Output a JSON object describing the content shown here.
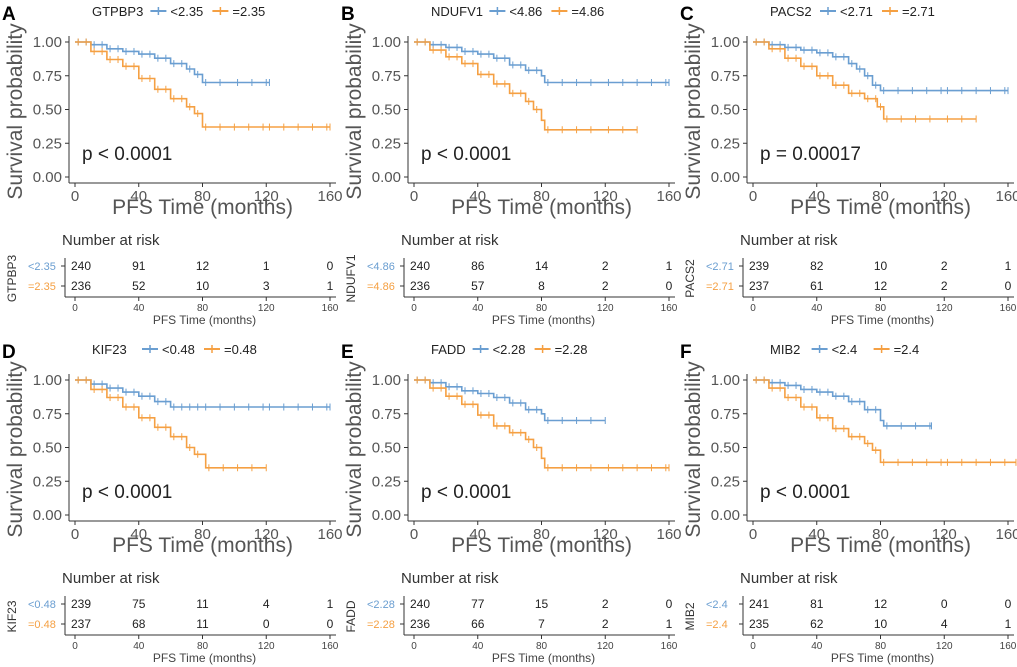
{
  "colors": {
    "low": "#6a9ed1",
    "high": "#f5a043"
  },
  "chart_data": [
    {
      "type": "line",
      "subtype": "kaplan-meier",
      "panel": "A",
      "gene": "GTPBP3",
      "legend": [
        "<2.35",
        "=2.35"
      ],
      "xlabel": "PFS Time (months)",
      "ylabel": "Survival probability",
      "xlim": [
        0,
        160
      ],
      "ylim": [
        0,
        1
      ],
      "xticks": [
        "0",
        "40",
        "80",
        "120",
        "160"
      ],
      "yticks": [
        "0.00",
        "0.25",
        "0.50",
        "0.75",
        "1.00"
      ],
      "pvalue": "p < 0.0001",
      "series": [
        {
          "name": "<2.35",
          "points": [
            [
              0,
              1
            ],
            [
              10,
              0.98
            ],
            [
              20,
              0.95
            ],
            [
              30,
              0.93
            ],
            [
              40,
              0.91
            ],
            [
              50,
              0.88
            ],
            [
              60,
              0.84
            ],
            [
              70,
              0.8
            ],
            [
              75,
              0.76
            ],
            [
              80,
              0.7
            ],
            [
              100,
              0.7
            ],
            [
              122,
              0.7
            ]
          ]
        },
        {
          "name": "=2.35",
          "points": [
            [
              0,
              1
            ],
            [
              10,
              0.93
            ],
            [
              20,
              0.87
            ],
            [
              30,
              0.82
            ],
            [
              40,
              0.73
            ],
            [
              50,
              0.65
            ],
            [
              60,
              0.58
            ],
            [
              70,
              0.52
            ],
            [
              75,
              0.47
            ],
            [
              80,
              0.37
            ],
            [
              120,
              0.37
            ],
            [
              160,
              0.37
            ]
          ]
        }
      ],
      "risk_table": {
        "title": "Number at risk",
        "xlabel": "PFS Time (months)",
        "xticks": [
          "0",
          "40",
          "80",
          "120",
          "160"
        ],
        "rows": [
          {
            "label": "<2.35",
            "values": [
              "240",
              "91",
              "12",
              "1",
              "0"
            ]
          },
          {
            "label": "=2.35",
            "values": [
              "236",
              "52",
              "10",
              "3",
              "1"
            ]
          }
        ]
      }
    },
    {
      "type": "line",
      "subtype": "kaplan-meier",
      "panel": "B",
      "gene": "NDUFV1",
      "legend": [
        "<4.86",
        "=4.86"
      ],
      "xlabel": "PFS Time (months)",
      "ylabel": "Survival probability",
      "xlim": [
        0,
        160
      ],
      "ylim": [
        0,
        1
      ],
      "xticks": [
        "0",
        "40",
        "80",
        "120",
        "160"
      ],
      "yticks": [
        "0.00",
        "0.25",
        "0.50",
        "0.75",
        "1.00"
      ],
      "pvalue": "p < 0.0001",
      "series": [
        {
          "name": "<4.86",
          "points": [
            [
              0,
              1
            ],
            [
              10,
              0.98
            ],
            [
              20,
              0.96
            ],
            [
              30,
              0.93
            ],
            [
              40,
              0.91
            ],
            [
              50,
              0.88
            ],
            [
              60,
              0.83
            ],
            [
              70,
              0.79
            ],
            [
              80,
              0.75
            ],
            [
              82,
              0.7
            ],
            [
              120,
              0.7
            ],
            [
              160,
              0.7
            ]
          ]
        },
        {
          "name": "=4.86",
          "points": [
            [
              0,
              1
            ],
            [
              10,
              0.94
            ],
            [
              20,
              0.89
            ],
            [
              30,
              0.84
            ],
            [
              40,
              0.76
            ],
            [
              50,
              0.69
            ],
            [
              60,
              0.62
            ],
            [
              70,
              0.56
            ],
            [
              75,
              0.5
            ],
            [
              80,
              0.42
            ],
            [
              82,
              0.35
            ],
            [
              120,
              0.35
            ],
            [
              140,
              0.35
            ]
          ]
        }
      ],
      "risk_table": {
        "title": "Number at risk",
        "xlabel": "PFS Time (months)",
        "xticks": [
          "0",
          "40",
          "80",
          "120",
          "160"
        ],
        "rows": [
          {
            "label": "<4.86",
            "values": [
              "240",
              "86",
              "14",
              "2",
              "1"
            ]
          },
          {
            "label": "=4.86",
            "values": [
              "236",
              "57",
              "8",
              "2",
              "0"
            ]
          }
        ]
      }
    },
    {
      "type": "line",
      "subtype": "kaplan-meier",
      "panel": "C",
      "gene": "PACS2",
      "legend": [
        "<2.71",
        "=2.71"
      ],
      "xlabel": "PFS Time (months)",
      "ylabel": "Survival probability",
      "xlim": [
        0,
        160
      ],
      "ylim": [
        0,
        1
      ],
      "xticks": [
        "0",
        "40",
        "80",
        "120",
        "160"
      ],
      "yticks": [
        "0.00",
        "0.25",
        "0.50",
        "0.75",
        "1.00"
      ],
      "pvalue": "p = 0.00017",
      "series": [
        {
          "name": "<2.71",
          "points": [
            [
              0,
              1
            ],
            [
              10,
              0.98
            ],
            [
              20,
              0.96
            ],
            [
              30,
              0.94
            ],
            [
              40,
              0.92
            ],
            [
              50,
              0.89
            ],
            [
              60,
              0.84
            ],
            [
              65,
              0.8
            ],
            [
              70,
              0.75
            ],
            [
              75,
              0.68
            ],
            [
              80,
              0.64
            ],
            [
              120,
              0.64
            ],
            [
              160,
              0.64
            ]
          ]
        },
        {
          "name": "=2.71",
          "points": [
            [
              0,
              1
            ],
            [
              10,
              0.95
            ],
            [
              20,
              0.88
            ],
            [
              30,
              0.82
            ],
            [
              40,
              0.75
            ],
            [
              50,
              0.68
            ],
            [
              60,
              0.62
            ],
            [
              70,
              0.58
            ],
            [
              78,
              0.52
            ],
            [
              82,
              0.43
            ],
            [
              120,
              0.43
            ],
            [
              140,
              0.43
            ]
          ]
        }
      ],
      "risk_table": {
        "title": "Number at risk",
        "xlabel": "PFS Time (months)",
        "xticks": [
          "0",
          "40",
          "80",
          "120",
          "160"
        ],
        "rows": [
          {
            "label": "<2.71",
            "values": [
              "239",
              "82",
              "10",
              "2",
              "1"
            ]
          },
          {
            "label": "=2.71",
            "values": [
              "237",
              "61",
              "12",
              "2",
              "0"
            ]
          }
        ]
      }
    },
    {
      "type": "line",
      "subtype": "kaplan-meier",
      "panel": "D",
      "gene": "KIF23",
      "legend": [
        "<0.48",
        "=0.48"
      ],
      "xlabel": "PFS Time (months)",
      "ylabel": "Survival probability",
      "xlim": [
        0,
        160
      ],
      "ylim": [
        0,
        1
      ],
      "xticks": [
        "0",
        "40",
        "80",
        "120",
        "160"
      ],
      "yticks": [
        "0.00",
        "0.25",
        "0.50",
        "0.75",
        "1.00"
      ],
      "pvalue": "p < 0.0001",
      "series": [
        {
          "name": "<0.48",
          "points": [
            [
              0,
              1
            ],
            [
              10,
              0.97
            ],
            [
              20,
              0.94
            ],
            [
              30,
              0.91
            ],
            [
              40,
              0.88
            ],
            [
              50,
              0.84
            ],
            [
              60,
              0.8
            ],
            [
              80,
              0.8
            ],
            [
              120,
              0.8
            ],
            [
              160,
              0.8
            ]
          ]
        },
        {
          "name": "=0.48",
          "points": [
            [
              0,
              1
            ],
            [
              10,
              0.93
            ],
            [
              20,
              0.87
            ],
            [
              30,
              0.8
            ],
            [
              40,
              0.72
            ],
            [
              50,
              0.65
            ],
            [
              60,
              0.58
            ],
            [
              70,
              0.5
            ],
            [
              75,
              0.45
            ],
            [
              82,
              0.35
            ],
            [
              120,
              0.35
            ]
          ]
        }
      ],
      "risk_table": {
        "title": "Number at risk",
        "xlabel": "PFS Time (months)",
        "xticks": [
          "0",
          "40",
          "80",
          "120",
          "160"
        ],
        "rows": [
          {
            "label": "<0.48",
            "values": [
              "239",
              "75",
              "11",
              "4",
              "1"
            ]
          },
          {
            "label": "=0.48",
            "values": [
              "237",
              "68",
              "11",
              "0",
              "0"
            ]
          }
        ]
      }
    },
    {
      "type": "line",
      "subtype": "kaplan-meier",
      "panel": "E",
      "gene": "FADD",
      "legend": [
        "<2.28",
        "=2.28"
      ],
      "xlabel": "PFS Time (months)",
      "ylabel": "Survival probability",
      "xlim": [
        0,
        160
      ],
      "ylim": [
        0,
        1
      ],
      "xticks": [
        "0",
        "40",
        "80",
        "120",
        "160"
      ],
      "yticks": [
        "0.00",
        "0.25",
        "0.50",
        "0.75",
        "1.00"
      ],
      "pvalue": "p < 0.0001",
      "series": [
        {
          "name": "<2.28",
          "points": [
            [
              0,
              1
            ],
            [
              10,
              0.98
            ],
            [
              20,
              0.95
            ],
            [
              30,
              0.92
            ],
            [
              40,
              0.9
            ],
            [
              50,
              0.87
            ],
            [
              60,
              0.83
            ],
            [
              70,
              0.78
            ],
            [
              80,
              0.75
            ],
            [
              82,
              0.7
            ],
            [
              120,
              0.7
            ]
          ]
        },
        {
          "name": "=2.28",
          "points": [
            [
              0,
              1
            ],
            [
              10,
              0.94
            ],
            [
              20,
              0.88
            ],
            [
              30,
              0.82
            ],
            [
              40,
              0.74
            ],
            [
              50,
              0.66
            ],
            [
              60,
              0.61
            ],
            [
              70,
              0.56
            ],
            [
              75,
              0.5
            ],
            [
              80,
              0.42
            ],
            [
              82,
              0.35
            ],
            [
              120,
              0.35
            ],
            [
              160,
              0.35
            ]
          ]
        }
      ],
      "risk_table": {
        "title": "Number at risk",
        "xlabel": "PFS Time (months)",
        "xticks": [
          "0",
          "40",
          "80",
          "120",
          "160"
        ],
        "rows": [
          {
            "label": "<2.28",
            "values": [
              "240",
              "77",
              "15",
              "2",
              "0"
            ]
          },
          {
            "label": "=2.28",
            "values": [
              "236",
              "66",
              "7",
              "2",
              "1"
            ]
          }
        ]
      }
    },
    {
      "type": "line",
      "subtype": "kaplan-meier",
      "panel": "F",
      "gene": "MIB2",
      "legend": [
        "<2.4",
        "=2.4"
      ],
      "xlabel": "PFS Time (months)",
      "ylabel": "Survival probability",
      "xlim": [
        0,
        160
      ],
      "ylim": [
        0,
        1
      ],
      "xticks": [
        "0",
        "40",
        "80",
        "120",
        "160"
      ],
      "yticks": [
        "0.00",
        "0.25",
        "0.50",
        "0.75",
        "1.00"
      ],
      "pvalue": "p < 0.0001",
      "series": [
        {
          "name": "<2.4",
          "points": [
            [
              0,
              1
            ],
            [
              10,
              0.98
            ],
            [
              20,
              0.96
            ],
            [
              30,
              0.93
            ],
            [
              40,
              0.91
            ],
            [
              50,
              0.88
            ],
            [
              60,
              0.84
            ],
            [
              70,
              0.78
            ],
            [
              80,
              0.7
            ],
            [
              82,
              0.66
            ],
            [
              112,
              0.66
            ]
          ]
        },
        {
          "name": "=2.4",
          "points": [
            [
              0,
              1
            ],
            [
              10,
              0.94
            ],
            [
              20,
              0.87
            ],
            [
              30,
              0.8
            ],
            [
              40,
              0.72
            ],
            [
              50,
              0.64
            ],
            [
              60,
              0.58
            ],
            [
              70,
              0.53
            ],
            [
              75,
              0.48
            ],
            [
              80,
              0.39
            ],
            [
              120,
              0.39
            ],
            [
              165,
              0.39
            ]
          ]
        }
      ],
      "risk_table": {
        "title": "Number at risk",
        "xlabel": "PFS Time (months)",
        "xticks": [
          "0",
          "40",
          "80",
          "120",
          "160"
        ],
        "rows": [
          {
            "label": "<2.4",
            "values": [
              "241",
              "81",
              "12",
              "0",
              "0"
            ]
          },
          {
            "label": "=2.4",
            "values": [
              "235",
              "62",
              "10",
              "4",
              "1"
            ]
          }
        ]
      }
    }
  ]
}
